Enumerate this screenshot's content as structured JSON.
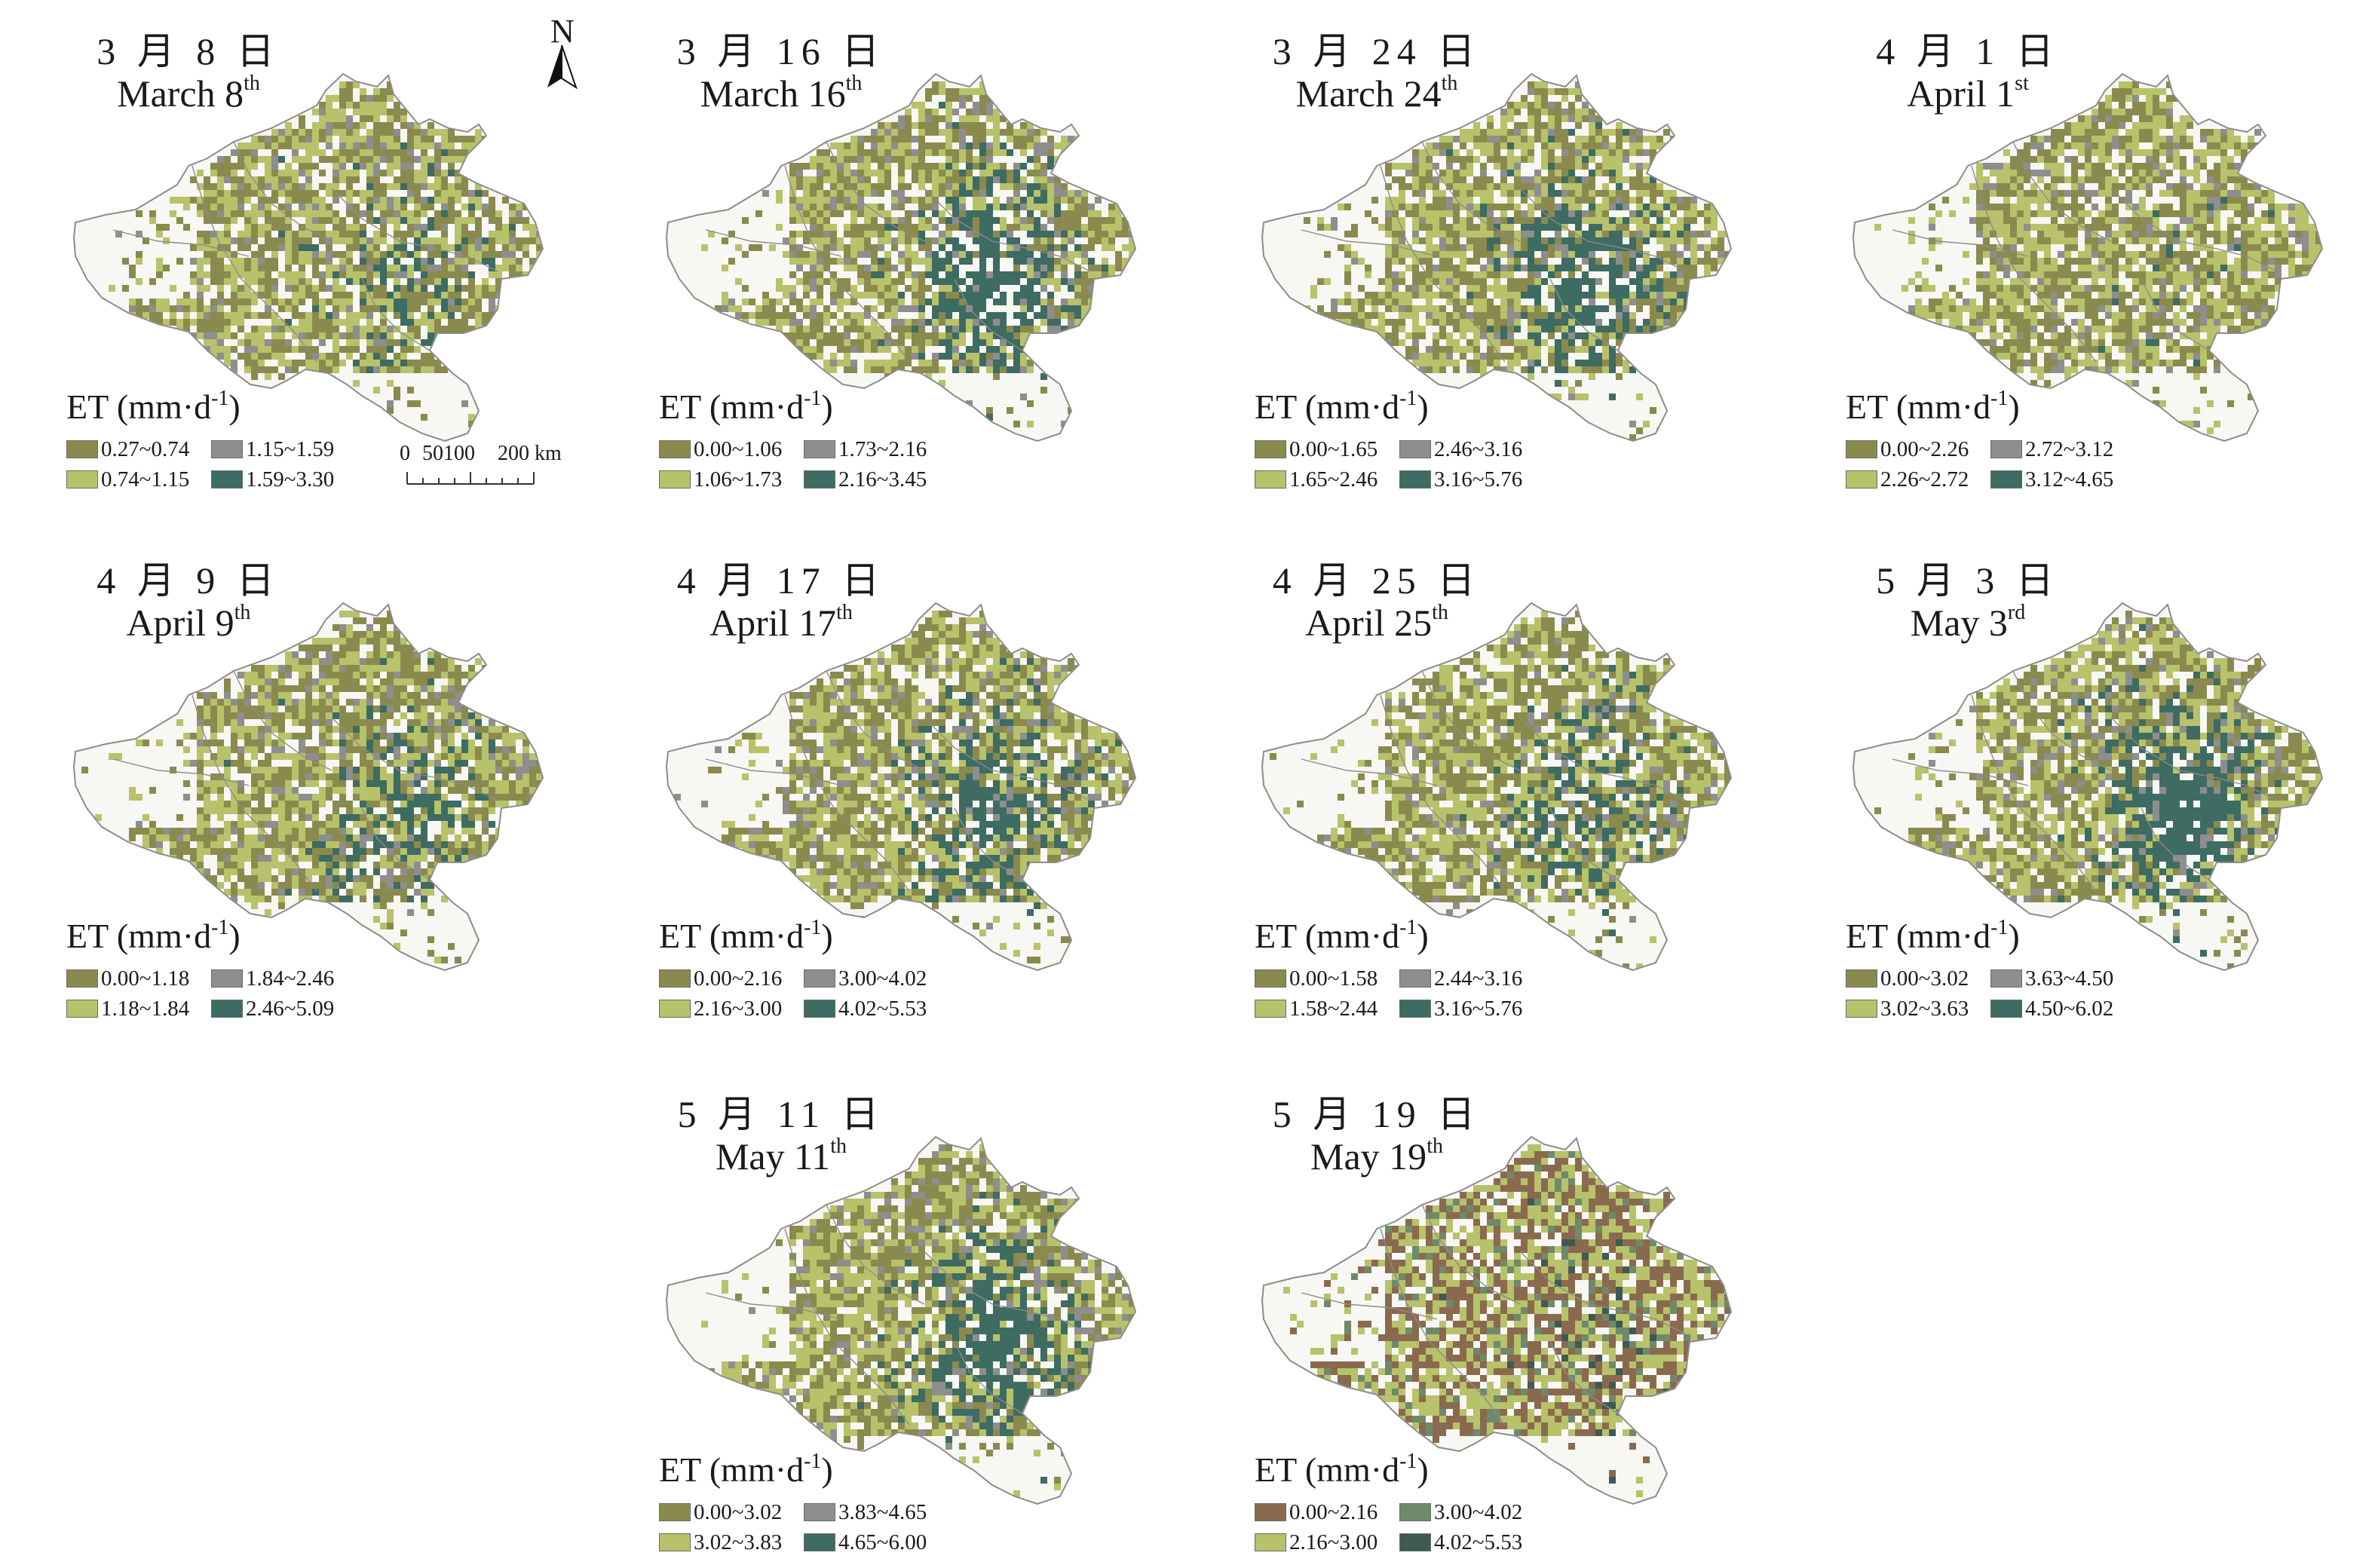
{
  "colors": {
    "boundary": "#8c8c8c",
    "map_fill_base": "#f7f7f3"
  },
  "north_arrow": {
    "label": "N"
  },
  "scale_bar": {
    "labels": [
      "0",
      "50100",
      "200 km"
    ]
  },
  "panels": [
    {
      "title_cn": "3 月 8 日",
      "title_en": "March 8",
      "title_sup": "th",
      "legend_title": "ET (mm·d",
      "legend_sup": "-1",
      "legend_close": ")",
      "classes": [
        {
          "range": "0.27~0.74",
          "color": "#8a8a4e"
        },
        {
          "range": "1.15~1.59",
          "color": "#8e8e8e"
        },
        {
          "range": "0.74~1.15",
          "color": "#b7c26a"
        },
        {
          "range": "1.59~3.30",
          "color": "#3e6b62"
        }
      ],
      "teal_share": 0.12
    },
    {
      "title_cn": "3 月 16 日",
      "title_en": "March 16",
      "title_sup": "th",
      "legend_title": "ET (mm·d",
      "legend_sup": "-1",
      "legend_close": ")",
      "classes": [
        {
          "range": "0.00~1.06",
          "color": "#8a8a4e"
        },
        {
          "range": "1.73~2.16",
          "color": "#8e8e8e"
        },
        {
          "range": "1.06~1.73",
          "color": "#b7c26a"
        },
        {
          "range": "2.16~3.45",
          "color": "#3e6b62"
        }
      ],
      "teal_share": 0.4
    },
    {
      "title_cn": "3 月 24 日",
      "title_en": "March 24",
      "title_sup": "th",
      "legend_title": "ET (mm·d",
      "legend_sup": "-1",
      "legend_close": ")",
      "classes": [
        {
          "range": "0.00~1.65",
          "color": "#8a8a4e"
        },
        {
          "range": "2.46~3.16",
          "color": "#8e8e8e"
        },
        {
          "range": "1.65~2.46",
          "color": "#b7c26a"
        },
        {
          "range": "3.16~5.76",
          "color": "#3e6b62"
        }
      ],
      "teal_share": 0.32
    },
    {
      "title_cn": "4 月 1 日",
      "title_en": "April 1",
      "title_sup": "st",
      "legend_title": "ET (mm·d",
      "legend_sup": "-1",
      "legend_close": ")",
      "classes": [
        {
          "range": "0.00~2.26",
          "color": "#8a8a4e"
        },
        {
          "range": "2.72~3.12",
          "color": "#8e8e8e"
        },
        {
          "range": "2.26~2.72",
          "color": "#b7c26a"
        },
        {
          "range": "3.12~4.65",
          "color": "#3e6b62"
        }
      ],
      "teal_share": 0.02
    },
    {
      "title_cn": "4 月 9 日",
      "title_en": "April 9",
      "title_sup": "th",
      "legend_title": "ET (mm·d",
      "legend_sup": "-1",
      "legend_close": ")",
      "classes": [
        {
          "range": "0.00~1.18",
          "color": "#8a8a4e"
        },
        {
          "range": "1.84~2.46",
          "color": "#8e8e8e"
        },
        {
          "range": "1.18~1.84",
          "color": "#b7c26a"
        },
        {
          "range": "2.46~5.09",
          "color": "#3e6b62"
        }
      ],
      "teal_share": 0.22
    },
    {
      "title_cn": "4 月 17 日",
      "title_en": "April 17",
      "title_sup": "th",
      "legend_title": "ET (mm·d",
      "legend_sup": "-1",
      "legend_close": ")",
      "classes": [
        {
          "range": "0.00~2.16",
          "color": "#8a8a4e"
        },
        {
          "range": "3.00~4.02",
          "color": "#8e8e8e"
        },
        {
          "range": "2.16~3.00",
          "color": "#b7c26a"
        },
        {
          "range": "4.02~5.53",
          "color": "#3e6b62"
        }
      ],
      "teal_share": 0.3
    },
    {
      "title_cn": "4 月 25 日",
      "title_en": "April 25",
      "title_sup": "th",
      "legend_title": "ET (mm·d",
      "legend_sup": "-1",
      "legend_close": ")",
      "classes": [
        {
          "range": "0.00~1.58",
          "color": "#8a8a4e"
        },
        {
          "range": "2.44~3.16",
          "color": "#8e8e8e"
        },
        {
          "range": "1.58~2.44",
          "color": "#b7c26a"
        },
        {
          "range": "3.16~5.76",
          "color": "#3e6b62"
        }
      ],
      "teal_share": 0.2
    },
    {
      "title_cn": "5 月 3 日",
      "title_en": "May 3",
      "title_sup": "rd",
      "legend_title": "ET (mm·d",
      "legend_sup": "-1",
      "legend_close": ")",
      "classes": [
        {
          "range": "0.00~3.02",
          "color": "#8a8a4e"
        },
        {
          "range": "3.63~4.50",
          "color": "#8e8e8e"
        },
        {
          "range": "3.02~3.63",
          "color": "#b7c26a"
        },
        {
          "range": "4.50~6.02",
          "color": "#3e6b62"
        }
      ],
      "teal_share": 0.42
    },
    {
      "title_cn": "5 月 11 日",
      "title_en": "May 11",
      "title_sup": "th",
      "legend_title": "ET (mm·d",
      "legend_sup": "-1",
      "legend_close": ")",
      "classes": [
        {
          "range": "0.00~3.02",
          "color": "#8a8a4e"
        },
        {
          "range": "3.83~4.65",
          "color": "#8e8e8e"
        },
        {
          "range": "3.02~3.83",
          "color": "#b7c26a"
        },
        {
          "range": "4.65~6.00",
          "color": "#3e6b62"
        }
      ],
      "teal_share": 0.34
    },
    {
      "title_cn": "5 月 19 日",
      "title_en": "May 19",
      "title_sup": "th",
      "legend_title": "ET (mm·d",
      "legend_sup": "-1",
      "legend_close": ")",
      "classes": [
        {
          "range": "0.00~2.16",
          "color": "#8a6a4e"
        },
        {
          "range": "3.00~4.02",
          "color": "#6f8a6a"
        },
        {
          "range": "2.16~3.00",
          "color": "#b7c26a"
        },
        {
          "range": "4.02~5.53",
          "color": "#3e5a52"
        }
      ],
      "teal_share": 0.05
    }
  ]
}
